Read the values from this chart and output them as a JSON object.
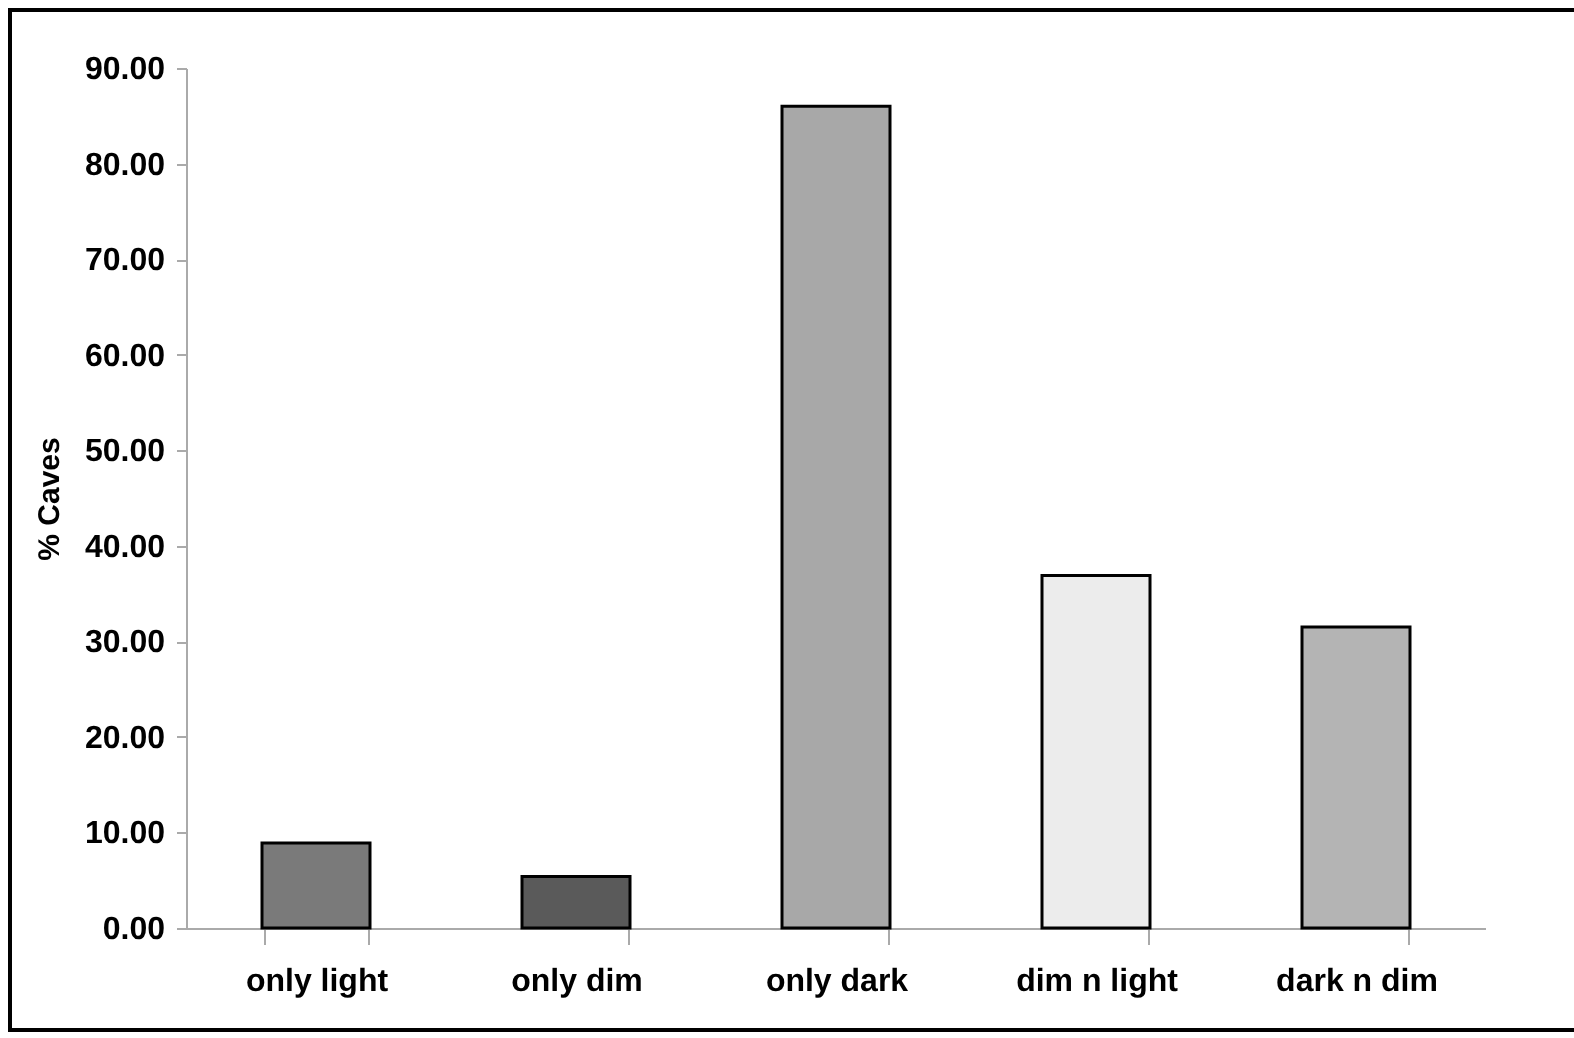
{
  "chart_data": {
    "type": "bar",
    "ylabel": "% Caves",
    "categories": [
      "only light",
      "only dim",
      "only dark",
      "dim n light",
      "dark n dim"
    ],
    "values": [
      8.9,
      5.4,
      86.0,
      36.9,
      31.5
    ],
    "colors": [
      "#7a7a7a",
      "#5a5a5a",
      "#a8a8a8",
      "#ececec",
      "#b4b4b4"
    ],
    "ylim": [
      0,
      90
    ],
    "yticks": [
      {
        "value": 0,
        "label": "0.00"
      },
      {
        "value": 10,
        "label": "10.00"
      },
      {
        "value": 20,
        "label": "20.00"
      },
      {
        "value": 30,
        "label": "30.00"
      },
      {
        "value": 40,
        "label": "40.00"
      },
      {
        "value": 50,
        "label": "50.00"
      },
      {
        "value": 60,
        "label": "60.00"
      },
      {
        "value": 70,
        "label": "70.00"
      },
      {
        "value": 80,
        "label": "80.00"
      },
      {
        "value": 90,
        "label": "90.00"
      }
    ],
    "grid": false,
    "legend": false
  }
}
